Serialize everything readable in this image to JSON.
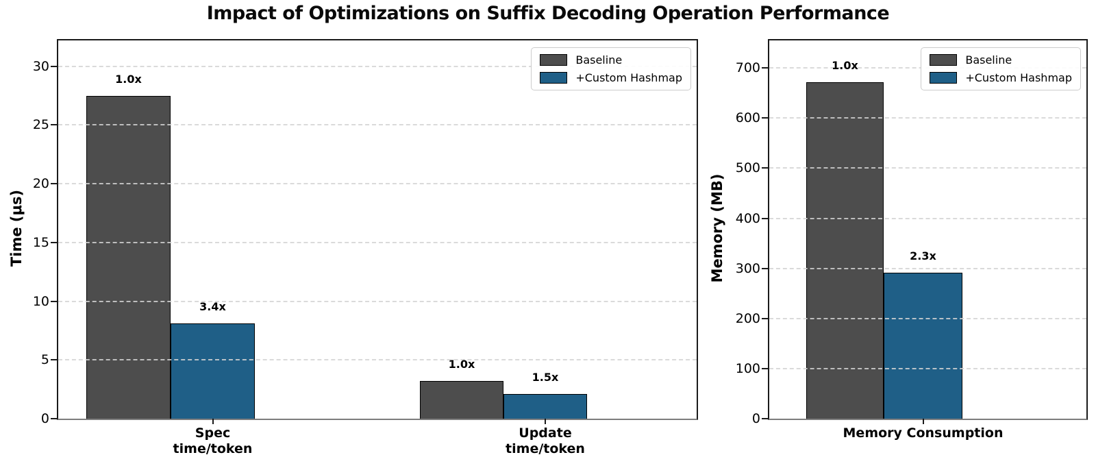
{
  "figure": {
    "title": "Impact of Optimizations on Suffix Decoding Operation Performance"
  },
  "legend": {
    "items": [
      {
        "label": "Baseline",
        "color": "#4d4d4d"
      },
      {
        "label": "+Custom Hashmap",
        "color": "#1f5f87"
      }
    ]
  },
  "chart_data": [
    {
      "type": "bar",
      "title": "",
      "ylabel": "Time (μs)",
      "xlabel": "",
      "categories": [
        "Spec\ntime/token",
        "Update\ntime/token"
      ],
      "series": [
        {
          "name": "Baseline",
          "color": "#4d4d4d",
          "values": [
            27.5,
            3.2
          ],
          "bar_labels": [
            "1.0x",
            "1.0x"
          ]
        },
        {
          "name": "+Custom Hashmap",
          "color": "#1f5f87",
          "values": [
            8.1,
            2.1
          ],
          "bar_labels": [
            "3.4x",
            "1.5x"
          ]
        }
      ],
      "ylim": [
        0,
        32.2
      ],
      "yticks": [
        0,
        5,
        10,
        15,
        20,
        25,
        30
      ],
      "grid": "horizontal dashed",
      "legend_position": "upper right"
    },
    {
      "type": "bar",
      "title": "",
      "ylabel": "Memory (MB)",
      "xlabel": "",
      "categories": [
        "Memory Consumption"
      ],
      "series": [
        {
          "name": "Baseline",
          "color": "#4d4d4d",
          "values": [
            671
          ],
          "bar_labels": [
            "1.0x"
          ]
        },
        {
          "name": "+Custom Hashmap",
          "color": "#1f5f87",
          "values": [
            292
          ],
          "bar_labels": [
            "2.3x"
          ]
        }
      ],
      "ylim": [
        0,
        755
      ],
      "yticks": [
        0,
        100,
        200,
        300,
        400,
        500,
        600,
        700
      ],
      "grid": "horizontal dashed",
      "legend_position": "upper right"
    }
  ]
}
